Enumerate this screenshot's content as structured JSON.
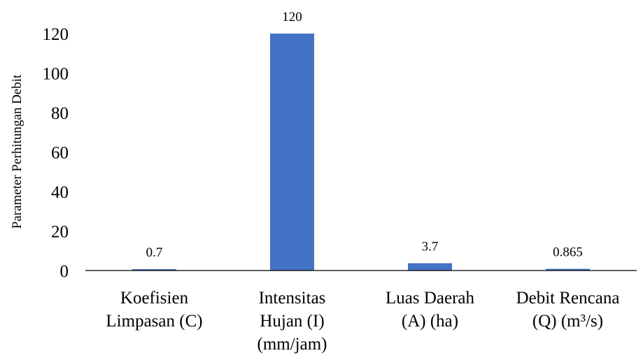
{
  "chart_data": {
    "type": "bar",
    "title": "",
    "xlabel": "",
    "ylabel": "Parameter Perhitungan Debit",
    "ylim": [
      0,
      120
    ],
    "yticks": [
      "0",
      "20",
      "40",
      "60",
      "80",
      "100",
      "120"
    ],
    "grid": false,
    "legend": "none",
    "categories": [
      [
        "Koefisien",
        "Limpasan (C)"
      ],
      [
        "Intensitas",
        "Hujan (I)",
        "(mm/jam)"
      ],
      [
        "Luas Daerah",
        "(A) (ha)"
      ],
      [
        "Debit Rencana",
        "(Q) (m³/s)"
      ]
    ],
    "values": [
      0.7,
      120,
      3.7,
      0.865
    ],
    "data_labels": [
      "0.7",
      "120",
      "3.7",
      "0.865"
    ],
    "colors": {
      "bar": "#4472c4",
      "axis": "#000000",
      "text": "#000000"
    }
  }
}
